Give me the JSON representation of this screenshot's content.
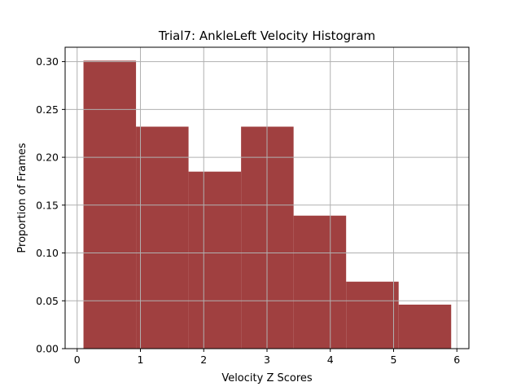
{
  "chart_data": {
    "type": "bar",
    "title": "Trial7: AnkleLeft Velocity Histogram",
    "xlabel": "Velocity Z Scores",
    "ylabel": "Proportion of Frames",
    "xlim": [
      -0.19,
      6.19
    ],
    "ylim": [
      0,
      0.315
    ],
    "grid": true,
    "bar_color": "#a04040",
    "grid_color": "#b0b0b0",
    "x_ticks": [
      {
        "value": 0,
        "label": "0"
      },
      {
        "value": 1,
        "label": "1"
      },
      {
        "value": 2,
        "label": "2"
      },
      {
        "value": 3,
        "label": "3"
      },
      {
        "value": 4,
        "label": "4"
      },
      {
        "value": 5,
        "label": "5"
      },
      {
        "value": 6,
        "label": "6"
      }
    ],
    "y_ticks": [
      {
        "value": 0.0,
        "label": "0.00"
      },
      {
        "value": 0.05,
        "label": "0.05"
      },
      {
        "value": 0.1,
        "label": "0.10"
      },
      {
        "value": 0.15,
        "label": "0.15"
      },
      {
        "value": 0.2,
        "label": "0.20"
      },
      {
        "value": 0.25,
        "label": "0.25"
      },
      {
        "value": 0.3,
        "label": "0.30"
      }
    ],
    "bins": [
      {
        "x0": 0.1,
        "x1": 0.93,
        "value": 0.301
      },
      {
        "x0": 0.93,
        "x1": 1.76,
        "value": 0.232
      },
      {
        "x0": 1.76,
        "x1": 2.59,
        "value": 0.185
      },
      {
        "x0": 2.59,
        "x1": 3.42,
        "value": 0.232
      },
      {
        "x0": 3.42,
        "x1": 4.25,
        "value": 0.139
      },
      {
        "x0": 4.25,
        "x1": 5.08,
        "value": 0.07
      },
      {
        "x0": 5.08,
        "x1": 5.91,
        "value": 0.046
      }
    ]
  }
}
